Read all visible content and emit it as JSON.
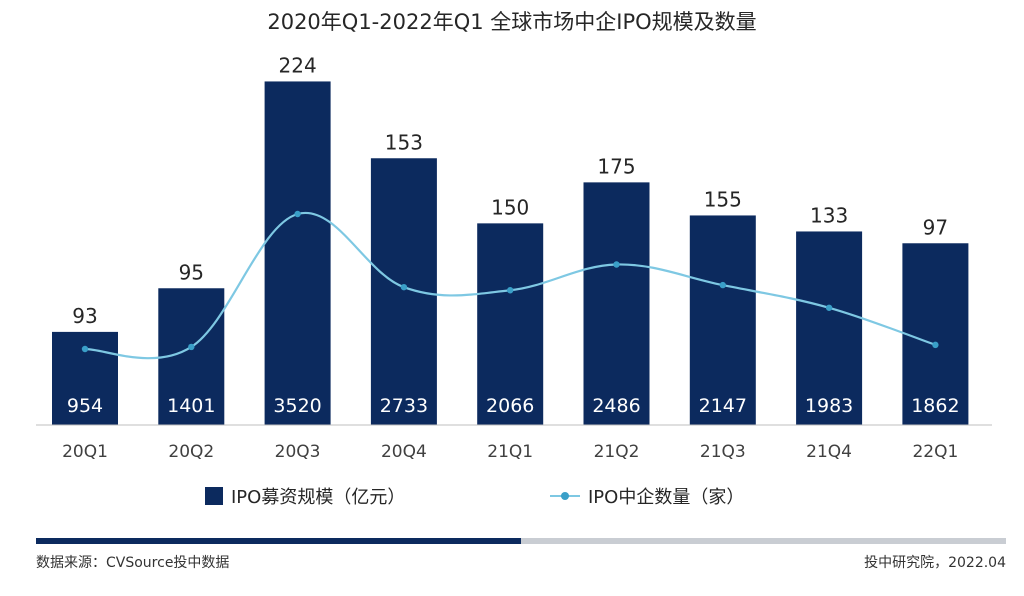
{
  "colors": {
    "bar": "#0c2a5e",
    "line": "#7ec8e3",
    "marker": "#3a9fc8",
    "axis": "#bfbfbf",
    "progress_dark": "#0c2a5e"
  },
  "chart_data": {
    "type": "bar",
    "title": "2020年Q1-2022年Q1 全球市场中企IPO规模及数量",
    "categories": [
      "20Q1",
      "20Q2",
      "20Q3",
      "20Q4",
      "21Q1",
      "21Q2",
      "21Q3",
      "21Q4",
      "22Q1"
    ],
    "series": [
      {
        "name": "IPO募资规模（亿元）",
        "type": "bar",
        "axis": "left",
        "values": [
          954,
          1401,
          3520,
          2733,
          2066,
          2486,
          2147,
          1983,
          1862
        ]
      },
      {
        "name": "IPO中企数量（家）",
        "type": "line",
        "axis": "right",
        "values": [
          93,
          95,
          224,
          153,
          150,
          175,
          155,
          133,
          97
        ]
      }
    ],
    "legend_position": "bottom",
    "grid": false
  },
  "footer": {
    "source": "数据来源：CVSource投中数据",
    "credit": "投中研究院，2022.04"
  },
  "progress": {
    "fraction": 0.5
  }
}
